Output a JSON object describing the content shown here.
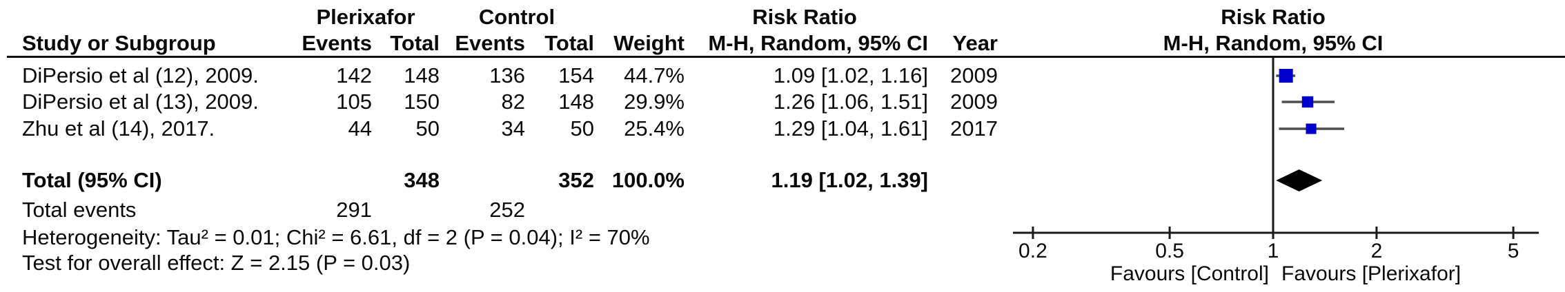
{
  "table": {
    "header_groups": {
      "plerixafor": "Plerixafor",
      "control": "Control",
      "risk_ratio": "Risk Ratio"
    },
    "columns": {
      "study": "Study or Subgroup",
      "p_events": "Events",
      "p_total": "Total",
      "c_events": "Events",
      "c_total": "Total",
      "weight": "Weight",
      "mh": "M-H, Random, 95% CI",
      "year": "Year"
    },
    "rows": [
      {
        "study": "DiPersio et al (12), 2009.",
        "p_events": "142",
        "p_total": "148",
        "c_events": "136",
        "c_total": "154",
        "weight": "44.7%",
        "rr_ci": "1.09 [1.02, 1.16]",
        "year": "2009"
      },
      {
        "study": "DiPersio et al (13), 2009.",
        "p_events": "105",
        "p_total": "150",
        "c_events": "82",
        "c_total": "148",
        "weight": "29.9%",
        "rr_ci": "1.26 [1.06, 1.51]",
        "year": "2009"
      },
      {
        "study": "Zhu et al (14), 2017.",
        "p_events": "44",
        "p_total": "50",
        "c_events": "34",
        "c_total": "50",
        "weight": "25.4%",
        "rr_ci": "1.29 [1.04, 1.61]",
        "year": "2017"
      }
    ],
    "total_row": {
      "label": "Total (95% CI)",
      "p_total": "348",
      "c_total": "352",
      "weight": "100.0%",
      "rr_ci": "1.19 [1.02, 1.39]"
    },
    "total_events_row": {
      "label": "Total events",
      "p_events": "291",
      "c_events": "252"
    },
    "heterogeneity": "Heterogeneity: Tau² = 0.01; Chi² = 6.61, df = 2 (P = 0.04); I² = 70%",
    "overall_effect": "Test for overall effect: Z = 2.15 (P = 0.03)"
  },
  "plot": {
    "header_line1": "Risk Ratio",
    "header_line2": "M-H, Random, 95% CI",
    "marker_color": "#0000cc",
    "ci_line_color": "#4d4d4d",
    "axis_color": "#1a1a1a",
    "diamond_color": "#000000"
  },
  "chart_data": {
    "type": "scatter",
    "subtype": "forest-plot",
    "title": "Risk Ratio",
    "effect_measure": "M-H, Random, 95% CI",
    "x_scale": "log",
    "x_axis_ticks": [
      "0.2",
      "0.5",
      "1",
      "2",
      "5"
    ],
    "x_axis_range": [
      0.17,
      5.9
    ],
    "null_line": 1,
    "favours_left": "Favours [Control]",
    "favours_right": "Favours [Plerixafor]",
    "studies": [
      {
        "name": "DiPersio et al (12), 2009.",
        "rr": 1.09,
        "ci_low": 1.02,
        "ci_high": 1.16,
        "weight_pct": 44.7,
        "year": 2009
      },
      {
        "name": "DiPersio et al (13), 2009.",
        "rr": 1.26,
        "ci_low": 1.06,
        "ci_high": 1.51,
        "weight_pct": 29.9,
        "year": 2009
      },
      {
        "name": "Zhu et al (14), 2017.",
        "rr": 1.29,
        "ci_low": 1.04,
        "ci_high": 1.61,
        "weight_pct": 25.4,
        "year": 2017
      }
    ],
    "total": {
      "rr": 1.19,
      "ci_low": 1.02,
      "ci_high": 1.39,
      "total_plerixafor": 348,
      "total_control": 352,
      "events_plerixafor": 291,
      "events_control": 252
    },
    "heterogeneity": {
      "tau2": 0.01,
      "chi2": 6.61,
      "df": 2,
      "p": 0.04,
      "i2_pct": 70
    },
    "overall_effect": {
      "z": 2.15,
      "p": 0.03
    }
  }
}
